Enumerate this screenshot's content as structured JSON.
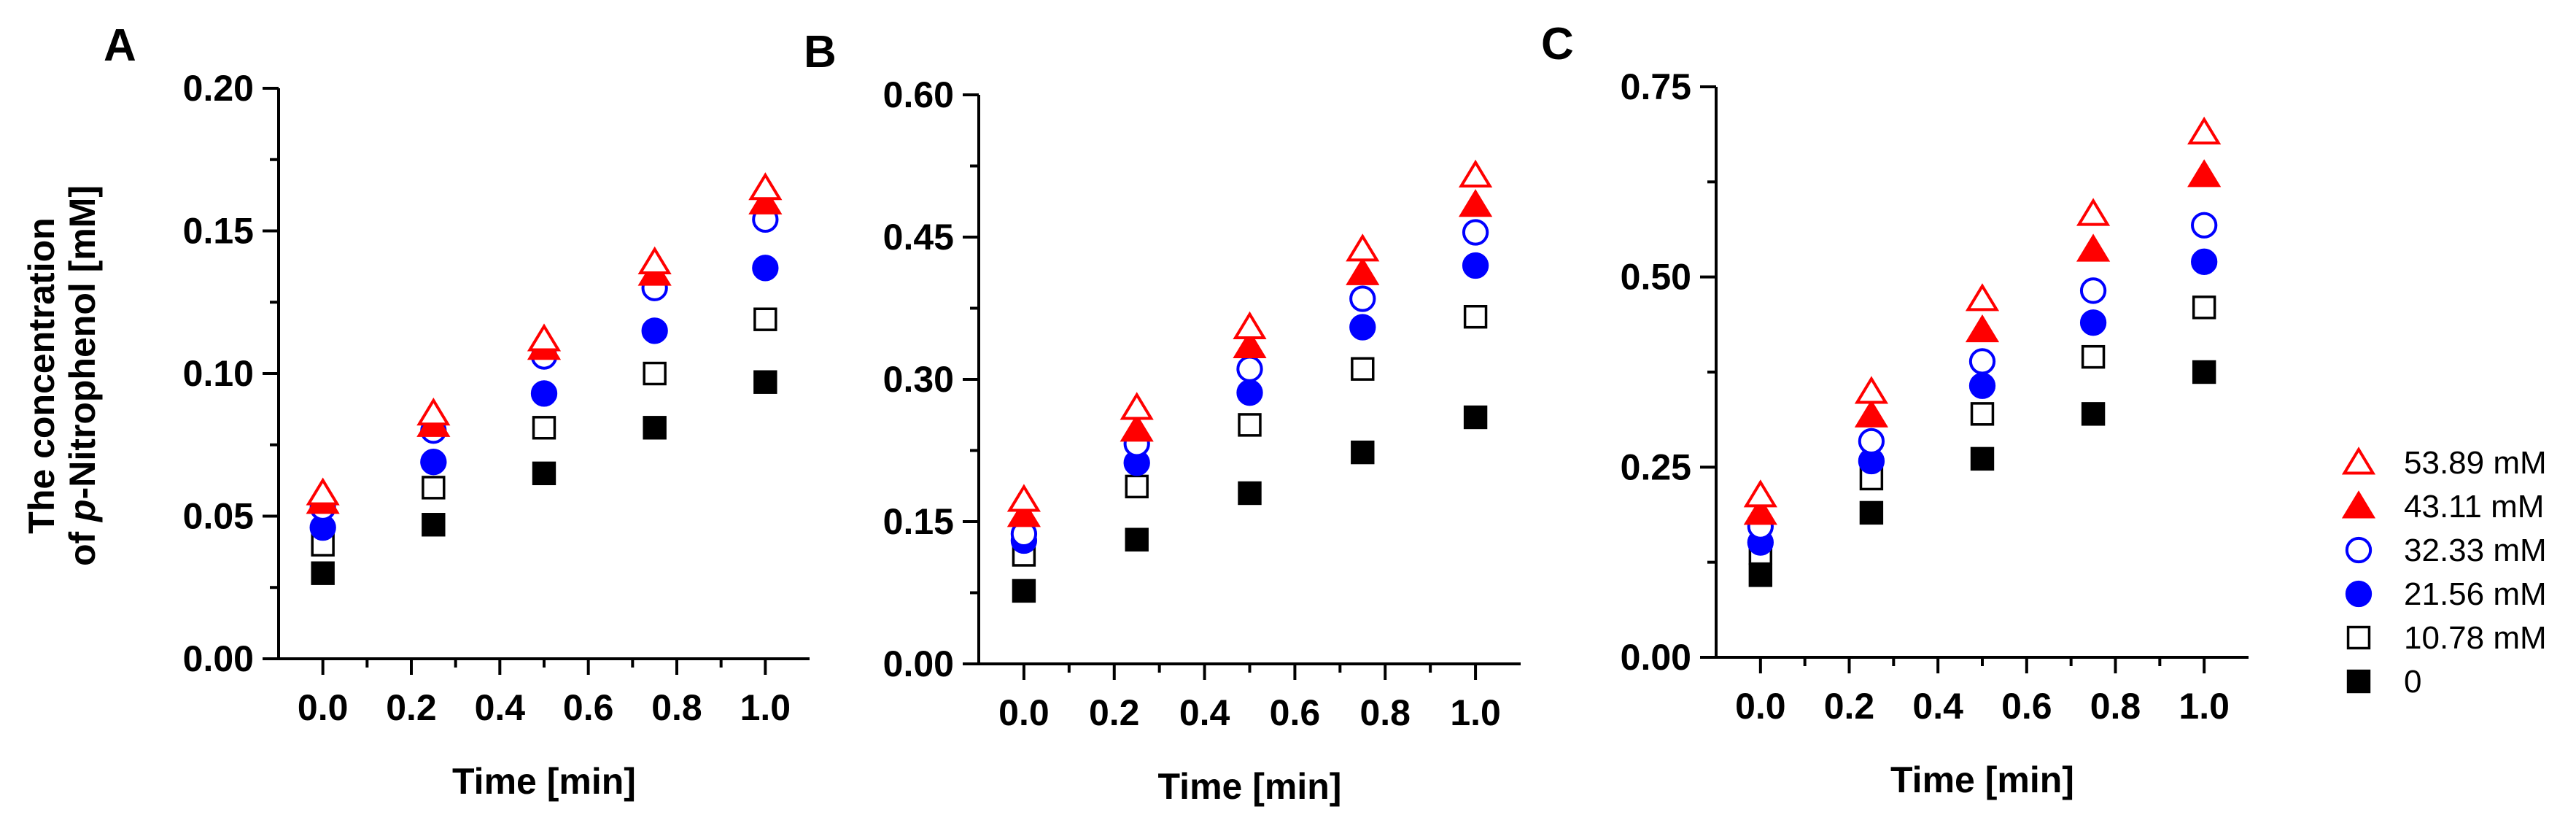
{
  "shared": {
    "ylabel_line1": "The concentration",
    "ylabel_line2_prefix": "of ",
    "ylabel_line2_italic": "p",
    "ylabel_line2_suffix": "-Nitrophenol [mM]"
  },
  "legend": [
    {
      "label": "53.89 mM",
      "marker": "triangle-open",
      "color": "#ff0000"
    },
    {
      "label": "43.11 mM",
      "marker": "triangle-filled",
      "color": "#ff0000"
    },
    {
      "label": "32.33 mM",
      "marker": "circle-open",
      "color": "#0000ff"
    },
    {
      "label": "21.56 mM",
      "marker": "circle-filled",
      "color": "#0000ff"
    },
    {
      "label": "10.78 mM",
      "marker": "square-open",
      "color": "#000000"
    },
    {
      "label": "0",
      "marker": "square-filled",
      "color": "#000000"
    }
  ],
  "chart_data": [
    {
      "panel": "A",
      "type": "scatter",
      "xlabel": "Time [min]",
      "ylabel": "The concentration of p-Nitrophenol [mM]",
      "xlim": [
        -0.1,
        1.1
      ],
      "ylim": [
        0,
        0.2
      ],
      "xticks": [
        0.0,
        0.2,
        0.4,
        0.6,
        0.8,
        1.0
      ],
      "xtick_labels": [
        "0.0",
        "0.2",
        "0.4",
        "0.6",
        "0.8",
        "1.0"
      ],
      "yticks": [
        0,
        0.05,
        0.1,
        0.15,
        0.2
      ],
      "ytick_labels": [
        "0.00",
        "0.05",
        "0.10",
        "0.15",
        "0.20"
      ],
      "x": [
        0,
        0.25,
        0.5,
        0.75,
        1.0
      ],
      "series": [
        {
          "name": "53.89 mM",
          "values": [
            0.058,
            0.086,
            0.112,
            0.139,
            0.165
          ]
        },
        {
          "name": "43.11 mM",
          "values": [
            0.055,
            0.082,
            0.109,
            0.135,
            0.16
          ]
        },
        {
          "name": "32.33 mM",
          "values": [
            0.053,
            0.08,
            0.106,
            0.13,
            0.154
          ]
        },
        {
          "name": "21.56 mM",
          "values": [
            0.046,
            0.069,
            0.093,
            0.115,
            0.137
          ]
        },
        {
          "name": "10.78 mM",
          "values": [
            0.04,
            0.06,
            0.081,
            0.1,
            0.119
          ]
        },
        {
          "name": "0",
          "values": [
            0.03,
            0.047,
            0.065,
            0.081,
            0.097
          ]
        }
      ]
    },
    {
      "panel": "B",
      "type": "scatter",
      "xlabel": "Time [min]",
      "ylabel": "",
      "xlim": [
        -0.1,
        1.1
      ],
      "ylim": [
        0,
        0.6
      ],
      "xticks": [
        0.0,
        0.2,
        0.4,
        0.6,
        0.8,
        1.0
      ],
      "xtick_labels": [
        "0.0",
        "0.2",
        "0.4",
        "0.6",
        "0.8",
        "1.0"
      ],
      "yticks": [
        0,
        0.15,
        0.3,
        0.45,
        0.6
      ],
      "ytick_labels": [
        "0.00",
        "0.15",
        "0.30",
        "0.45",
        "0.60"
      ],
      "x": [
        0,
        0.25,
        0.5,
        0.75,
        1.0
      ],
      "series": [
        {
          "name": "53.89 mM",
          "values": [
            0.173,
            0.27,
            0.355,
            0.437,
            0.515
          ]
        },
        {
          "name": "43.11 mM",
          "values": [
            0.157,
            0.247,
            0.335,
            0.412,
            0.484
          ]
        },
        {
          "name": "32.33 mM",
          "values": [
            0.137,
            0.232,
            0.311,
            0.385,
            0.455
          ]
        },
        {
          "name": "21.56 mM",
          "values": [
            0.13,
            0.212,
            0.286,
            0.355,
            0.42
          ]
        },
        {
          "name": "10.78 mM",
          "values": [
            0.115,
            0.187,
            0.252,
            0.311,
            0.366
          ]
        },
        {
          "name": "0",
          "values": [
            0.077,
            0.131,
            0.18,
            0.223,
            0.26
          ]
        }
      ]
    },
    {
      "panel": "C",
      "type": "scatter",
      "xlabel": "Time [min]",
      "ylabel": "",
      "xlim": [
        -0.1,
        1.1
      ],
      "ylim": [
        0,
        0.75
      ],
      "xticks": [
        0.0,
        0.2,
        0.4,
        0.6,
        0.8,
        1.0
      ],
      "xtick_labels": [
        "0.0",
        "0.2",
        "0.4",
        "0.6",
        "0.8",
        "1.0"
      ],
      "yticks": [
        0,
        0.25,
        0.5,
        0.75
      ],
      "ytick_labels": [
        "0.00",
        "0.25",
        "0.50",
        "0.75"
      ],
      "x": [
        0,
        0.25,
        0.5,
        0.75,
        1.0
      ],
      "series": [
        {
          "name": "53.89 mM",
          "values": [
            0.213,
            0.349,
            0.471,
            0.583,
            0.69
          ]
        },
        {
          "name": "43.11 mM",
          "values": [
            0.19,
            0.318,
            0.43,
            0.536,
            0.634
          ]
        },
        {
          "name": "32.33 mM",
          "values": [
            0.172,
            0.284,
            0.389,
            0.482,
            0.568
          ]
        },
        {
          "name": "21.56 mM",
          "values": [
            0.151,
            0.258,
            0.357,
            0.44,
            0.52
          ]
        },
        {
          "name": "10.78 mM",
          "values": [
            0.137,
            0.235,
            0.32,
            0.395,
            0.46
          ]
        },
        {
          "name": "0",
          "values": [
            0.108,
            0.19,
            0.261,
            0.32,
            0.375
          ]
        }
      ]
    }
  ]
}
